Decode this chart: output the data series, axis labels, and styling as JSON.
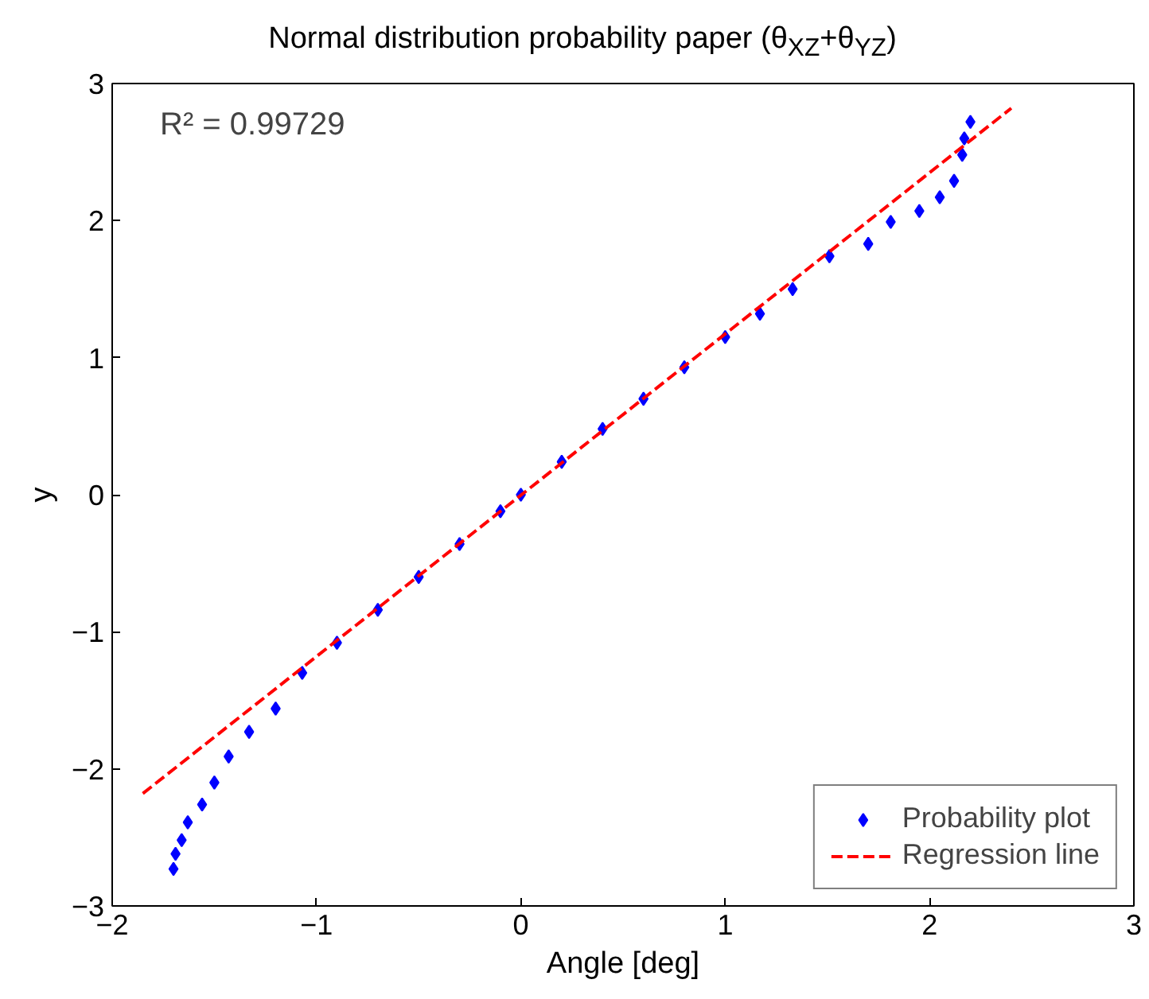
{
  "chart_data": {
    "type": "scatter",
    "title": "Normal distribution probability paper (θ$_{XZ}$+θ$_{YZ}$)",
    "xlabel": "Angle [deg]",
    "ylabel": "y",
    "annotations": [
      "R² = 0.99729"
    ],
    "xlim": [
      -2,
      3
    ],
    "ylim": [
      -3,
      3
    ],
    "xticks": [
      -2,
      -1,
      0,
      1,
      2,
      3
    ],
    "yticks": [
      -3,
      -2,
      -1,
      0,
      1,
      2,
      3
    ],
    "grid": false,
    "legend": "bottom right",
    "series": [
      {
        "name": "Probability plot",
        "color": "#0000ff",
        "marker": "diamond",
        "x": [
          -1.7,
          -1.69,
          -1.66,
          -1.63,
          -1.56,
          -1.5,
          -1.43,
          -1.33,
          -1.2,
          -1.07,
          -0.9,
          -0.7,
          -0.5,
          -0.3,
          -0.1,
          0.0,
          0.2,
          0.4,
          0.6,
          0.8,
          1.0,
          1.17,
          1.33,
          1.51,
          1.7,
          1.81,
          1.95,
          2.05,
          2.12,
          2.16,
          2.17,
          2.2
        ],
        "values": [
          -2.73,
          -2.62,
          -2.52,
          -2.39,
          -2.26,
          -2.1,
          -1.91,
          -1.73,
          -1.56,
          -1.3,
          -1.08,
          -0.84,
          -0.6,
          -0.36,
          -0.12,
          0.0,
          0.24,
          0.48,
          0.7,
          0.93,
          1.15,
          1.32,
          1.5,
          1.74,
          1.83,
          1.99,
          2.07,
          2.17,
          2.29,
          2.48,
          2.6,
          2.72
        ]
      },
      {
        "name": "Regression line",
        "type": "line",
        "color": "#ff0000",
        "line_style": "dashed",
        "marker": "none",
        "x": [
          -1.85,
          2.4
        ],
        "values": [
          -2.18,
          2.82
        ]
      }
    ]
  }
}
